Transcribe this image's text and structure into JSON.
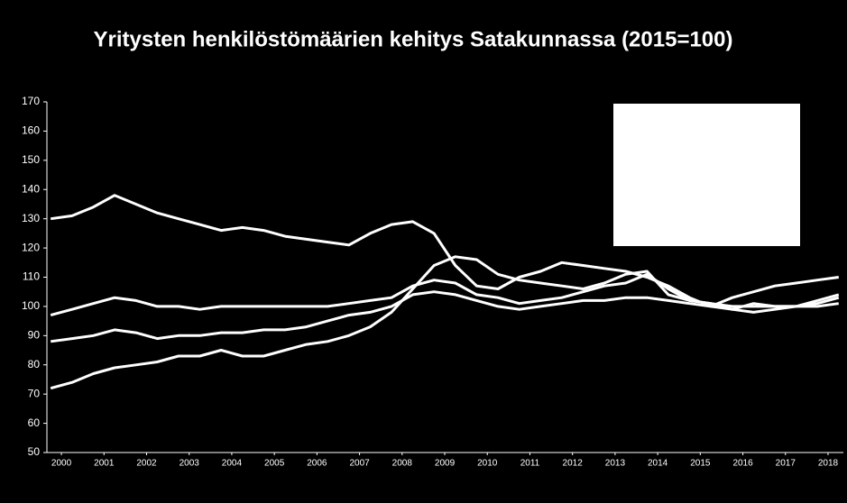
{
  "chart_data": {
    "type": "line",
    "title": "Yritysten henkilöstömäärien kehitys Satakunnassa (2015=100)",
    "x": [
      1999.75,
      2000.25,
      2000.75,
      2001.25,
      2001.75,
      2002.25,
      2002.75,
      2003.25,
      2003.75,
      2004.25,
      2004.75,
      2005.25,
      2005.75,
      2006.25,
      2006.75,
      2007.25,
      2007.75,
      2008.25,
      2008.75,
      2009.25,
      2009.75,
      2010.25,
      2010.75,
      2011.25,
      2011.75,
      2012.25,
      2012.75,
      2013.25,
      2013.75,
      2014.25,
      2014.75,
      2015.25,
      2015.75,
      2016.25,
      2016.75,
      2017.25,
      2017.75,
      2018.25
    ],
    "series": [
      {
        "color": "#ffffff",
        "values": [
          130,
          131,
          134,
          138,
          135,
          132,
          130,
          128,
          126,
          127,
          126,
          124,
          123,
          122,
          121,
          125,
          128,
          129,
          125,
          114,
          107,
          106,
          110,
          112,
          115,
          114,
          113,
          112,
          110,
          107,
          103,
          100,
          103,
          105,
          107,
          108,
          109,
          110
        ]
      },
      {
        "color": "#ffffff",
        "values": [
          97,
          99,
          101,
          103,
          102,
          100,
          100,
          99,
          100,
          100,
          100,
          100,
          100,
          100,
          101,
          102,
          103,
          107,
          109,
          108,
          104,
          103,
          101,
          102,
          103,
          105,
          107,
          108,
          111,
          106,
          102,
          101,
          100,
          100,
          100,
          100,
          101,
          103
        ]
      },
      {
        "color": "#ffffff",
        "values": [
          88,
          89,
          90,
          92,
          91,
          89,
          90,
          90,
          91,
          91,
          92,
          92,
          93,
          95,
          97,
          98,
          100,
          104,
          105,
          104,
          102,
          100,
          99,
          100,
          101,
          102,
          102,
          103,
          103,
          102,
          101,
          100,
          99,
          98,
          99,
          100,
          102,
          104
        ]
      },
      {
        "color": "#ffffff",
        "values": [
          72,
          74,
          77,
          79,
          80,
          81,
          83,
          83,
          85,
          83,
          83,
          85,
          87,
          88,
          90,
          93,
          98,
          106,
          114,
          117,
          116,
          111,
          109,
          108,
          107,
          106,
          108,
          111,
          112,
          104,
          102,
          101,
          99,
          101,
          100,
          100,
          100,
          101
        ]
      }
    ],
    "xlim": [
      1999.66,
      2018.36
    ],
    "xticks": [
      2000,
      2001,
      2002,
      2003,
      2004,
      2005,
      2006,
      2007,
      2008,
      2009,
      2010,
      2011,
      2012,
      2013,
      2014,
      2015,
      2016,
      2017,
      2018
    ],
    "ylim": [
      50,
      170
    ],
    "yticks": [
      50,
      60,
      70,
      80,
      90,
      100,
      110,
      120,
      130,
      140,
      150,
      160,
      170
    ]
  }
}
